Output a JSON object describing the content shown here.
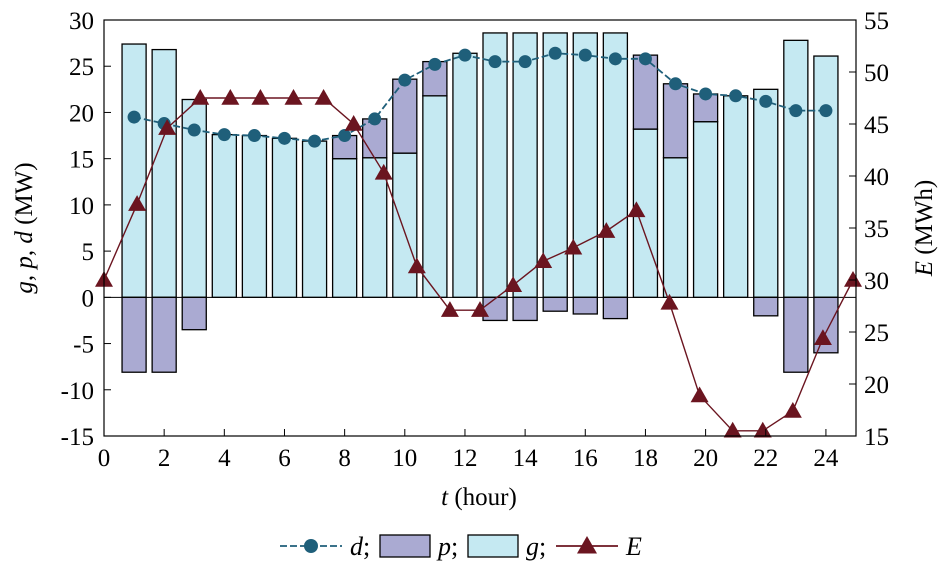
{
  "chart_data": {
    "type": "bar",
    "x": [
      1,
      2,
      3,
      4,
      5,
      6,
      7,
      8,
      9,
      10,
      11,
      12,
      13,
      14,
      15,
      16,
      17,
      18,
      19,
      20,
      21,
      22,
      23,
      24
    ],
    "series": [
      {
        "name": "d",
        "type": "line",
        "axis": "left",
        "color": "#1f5f7a",
        "marker": "circle",
        "values": [
          19.5,
          18.8,
          18.1,
          17.6,
          17.5,
          17.2,
          16.9,
          17.5,
          19.3,
          23.5,
          25.2,
          26.2,
          25.5,
          25.5,
          26.4,
          26.2,
          25.8,
          25.8,
          23.1,
          22.0,
          21.8,
          21.2,
          20.2,
          20.2
        ]
      },
      {
        "name": "p",
        "type": "bar",
        "axis": "left",
        "color": "#aaaad2",
        "values": [
          -8.1,
          -8.1,
          -3.5,
          0,
          0,
          0,
          0,
          2.5,
          4.2,
          8.0,
          3.7,
          0,
          -2.5,
          -2.5,
          -1.5,
          -1.8,
          -2.3,
          8.0,
          8.0,
          3.0,
          0,
          -2.0,
          -8.1,
          -6.0
        ]
      },
      {
        "name": "g",
        "type": "bar",
        "axis": "left",
        "color": "#c5e9f2",
        "values": [
          27.4,
          26.8,
          21.4,
          17.6,
          17.5,
          17.2,
          16.9,
          15.0,
          15.1,
          15.6,
          21.8,
          26.4,
          28.6,
          28.6,
          28.6,
          28.6,
          28.6,
          18.2,
          15.1,
          19.0,
          21.8,
          22.5,
          27.8,
          26.1
        ]
      },
      {
        "name": "E",
        "type": "line",
        "axis": "right",
        "color": "#6b1520",
        "marker": "triangle",
        "x": [
          0,
          1.1,
          2.1,
          3.2,
          4.2,
          5.2,
          6.3,
          7.3,
          8.3,
          9.3,
          10.4,
          11.5,
          12.5,
          13.6,
          14.6,
          15.6,
          16.7,
          17.7,
          18.8,
          19.8,
          20.9,
          21.9,
          22.9,
          23.9,
          24.9
        ],
        "values": [
          30,
          37.3,
          44.6,
          47.5,
          47.5,
          47.5,
          47.5,
          47.5,
          45,
          40.3,
          31.3,
          27.1,
          27.1,
          29.5,
          31.8,
          33.1,
          34.7,
          36.7,
          27.8,
          18.9,
          15.5,
          15.5,
          17.4,
          24.4,
          30
        ]
      }
    ],
    "xlabel_var": "t",
    "xlabel_unit": " (hour)",
    "ylabel_vars": [
      "g",
      "p",
      "d"
    ],
    "ylabel_unit": " (MW)",
    "y2label_var": "E",
    "y2label_unit": " (MWh)",
    "xlim": [
      0,
      25
    ],
    "ylim": [
      -15,
      30
    ],
    "y2lim": [
      15,
      55
    ],
    "x_ticks": [
      0,
      2,
      4,
      6,
      8,
      10,
      12,
      14,
      16,
      18,
      20,
      22,
      24
    ],
    "y_ticks": [
      -15,
      -10,
      -5,
      0,
      5,
      10,
      15,
      20,
      25,
      30
    ],
    "y2_ticks": [
      15,
      20,
      25,
      30,
      35,
      40,
      45,
      50,
      55
    ],
    "grid": false,
    "legend_position": "bottom",
    "legend": [
      {
        "series": "d",
        "label": "d",
        "sep": ";"
      },
      {
        "series": "p",
        "label": "p",
        "sep": ";"
      },
      {
        "series": "g",
        "label": "g",
        "sep": ";"
      },
      {
        "series": "E",
        "label": "E",
        "sep": ""
      }
    ]
  }
}
